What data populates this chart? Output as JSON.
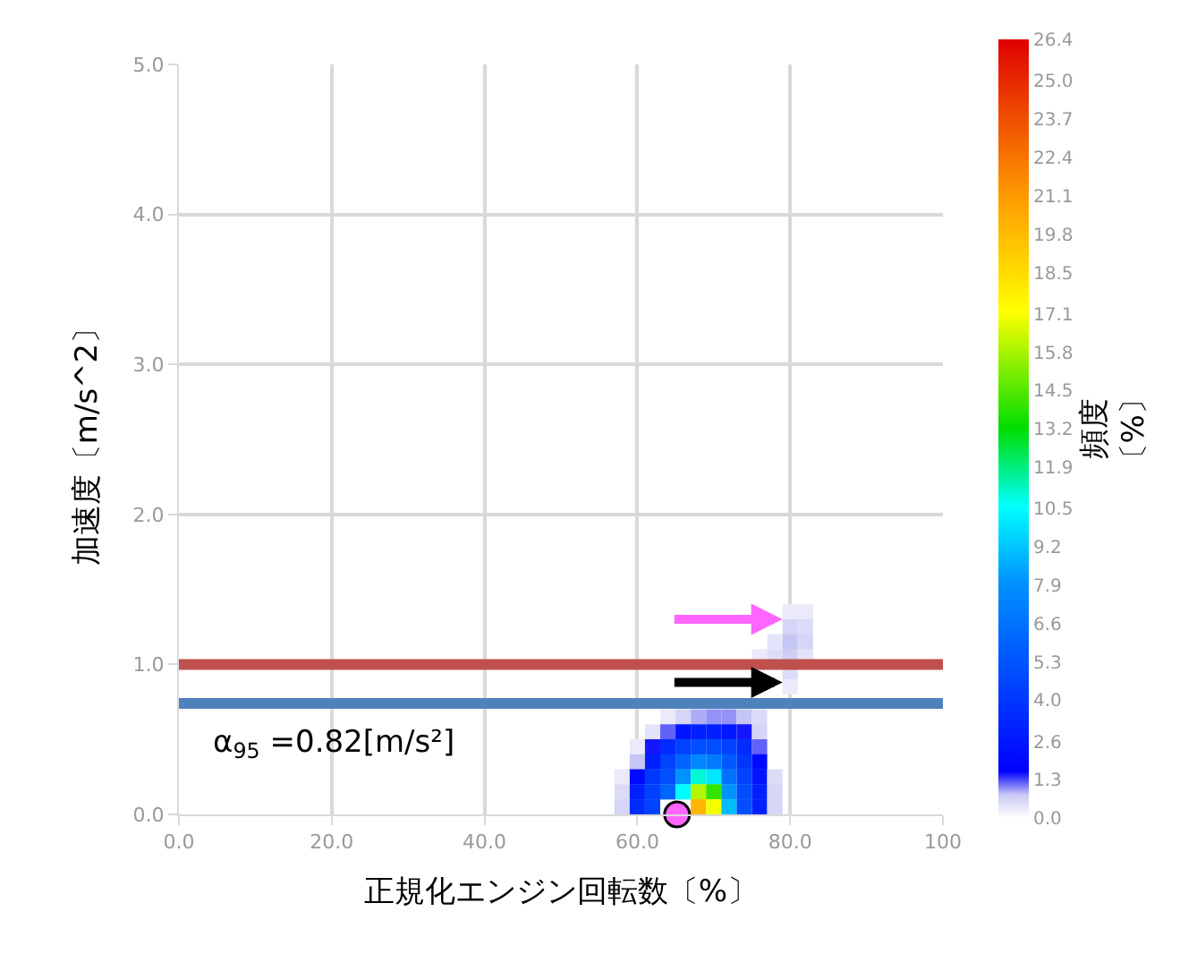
{
  "chart_data": {
    "type": "heatmap",
    "xlabel": "正規化エンジン回転数〔%〕",
    "ylabel": "加速度〔m/s^2〕",
    "clabel": "頻度〔%〕",
    "x": [
      58,
      60,
      62,
      64,
      66,
      68,
      70,
      72,
      74,
      76,
      78,
      80,
      82,
      84
    ],
    "y": [
      1.35,
      1.25,
      1.15,
      1.05,
      0.95,
      0.85,
      0.65,
      0.55,
      0.45,
      0.35,
      0.25,
      0.15,
      0.05
    ],
    "cells": [
      [
        null,
        null,
        null,
        null,
        null,
        null,
        null,
        null,
        null,
        null,
        null,
        0.3,
        0.3,
        null
      ],
      [
        null,
        null,
        null,
        null,
        null,
        null,
        null,
        null,
        null,
        null,
        null,
        0.6,
        0.5,
        null
      ],
      [
        null,
        null,
        null,
        null,
        null,
        null,
        null,
        null,
        null,
        null,
        0.4,
        0.8,
        0.6,
        null
      ],
      [
        null,
        null,
        null,
        null,
        null,
        null,
        null,
        null,
        null,
        0.3,
        0.5,
        0.7,
        0.4,
        null
      ],
      [
        null,
        null,
        null,
        null,
        null,
        null,
        null,
        null,
        null,
        null,
        null,
        0.5,
        null,
        null
      ],
      [
        null,
        null,
        null,
        null,
        null,
        null,
        null,
        null,
        null,
        null,
        null,
        0.3,
        null,
        null
      ],
      [
        null,
        null,
        null,
        0.3,
        0.6,
        0.9,
        1.0,
        1.0,
        0.8,
        0.5,
        null,
        null,
        null,
        null
      ],
      [
        null,
        null,
        0.4,
        1.2,
        2.5,
        3.0,
        3.0,
        2.6,
        1.5,
        0.6,
        null,
        null,
        null,
        null
      ],
      [
        null,
        0.3,
        1.5,
        3.5,
        4.5,
        5.0,
        5.0,
        4.5,
        3.5,
        1.2,
        null,
        null,
        null,
        null
      ],
      [
        null,
        0.8,
        3.0,
        4.5,
        6.0,
        7.5,
        7.0,
        5.5,
        4.0,
        2.0,
        null,
        null,
        null,
        null
      ],
      [
        0.3,
        2.0,
        4.0,
        5.0,
        8.0,
        11.0,
        10.0,
        6.5,
        4.5,
        2.5,
        0.5,
        null,
        null,
        null
      ],
      [
        0.5,
        3.0,
        4.5,
        6.0,
        10.5,
        16.0,
        14.0,
        8.0,
        5.0,
        3.0,
        0.6,
        null,
        null,
        null
      ],
      [
        0.6,
        3.5,
        4.5,
        null,
        null,
        20.0,
        17.0,
        9.0,
        5.0,
        3.0,
        0.6,
        null,
        null,
        null
      ]
    ],
    "clim": [
      0,
      26.4
    ],
    "cticks": [
      {
        "value": 0,
        "label": "0.0"
      },
      1.3,
      2.6,
      {
        "value": 4,
        "label": "4.0"
      },
      5.3,
      6.6,
      7.9,
      9.2,
      10.5,
      11.9,
      13.2,
      14.5,
      15.8,
      17.1,
      18.5,
      19.8,
      21.1,
      22.4,
      23.7,
      {
        "value": 25,
        "label": "25.0"
      },
      26.4
    ],
    "series": [
      {
        "type": "scatter",
        "x": [
          65.2
        ],
        "values": [
          0
        ],
        "color": "#ff66ff"
      }
    ],
    "marker": "circle",
    "xlim": [
      0,
      100
    ],
    "ylim": [
      0,
      5
    ],
    "xticks": [
      {
        "value": 0,
        "label": "0.0"
      },
      {
        "value": 20,
        "label": "20.0"
      },
      {
        "value": 40,
        "label": "40.0"
      },
      {
        "value": 60,
        "label": "60.0"
      },
      {
        "value": 80,
        "label": "80.0"
      },
      100
    ],
    "yticks": [
      {
        "value": 0,
        "label": "0.0"
      },
      {
        "value": 1,
        "label": "1.0"
      },
      {
        "value": 2,
        "label": "2.0"
      },
      {
        "value": 3,
        "label": "3.0"
      },
      {
        "value": 4,
        "label": "4.0"
      },
      {
        "value": 5,
        "label": "5.0"
      }
    ],
    "grid": true,
    "ref_lines": [
      {
        "axis": "y",
        "value": 1.0,
        "color": "#c0504d"
      },
      {
        "axis": "y",
        "value": 0.74,
        "color": "#4f81bd"
      }
    ],
    "annotations": [
      "α$_{95}$ =0.82[m/s²]"
    ]
  }
}
